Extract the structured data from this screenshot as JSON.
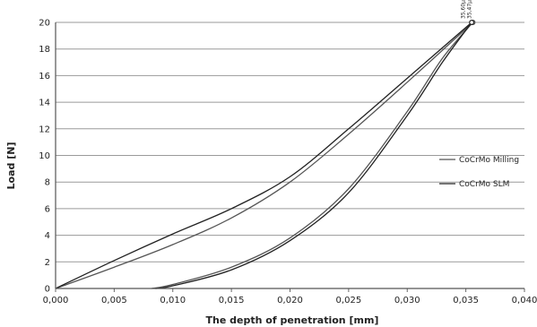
{
  "chart_data": {
    "type": "line",
    "title": "",
    "xlabel": "The depth of penetration [mm]",
    "ylabel": "Load [N]",
    "xlim": [
      0,
      0.04
    ],
    "ylim": [
      0,
      20
    ],
    "x_ticks": [
      "0,000",
      "0,005",
      "0,010",
      "0,015",
      "0,020",
      "0,025",
      "0,030",
      "0,035",
      "0,040"
    ],
    "y_ticks": [
      "0",
      "2",
      "4",
      "6",
      "8",
      "10",
      "12",
      "14",
      "16",
      "18",
      "20"
    ],
    "grid": "horizontal",
    "legend_position": "right",
    "annotations": [
      "35,60μm",
      "35,47μm"
    ],
    "series": [
      {
        "name": "CoCrMo Milling",
        "color": "#555555",
        "loading": [
          [
            0,
            0
          ],
          [
            0.005,
            1.6
          ],
          [
            0.01,
            3.3
          ],
          [
            0.015,
            5.3
          ],
          [
            0.02,
            8.0
          ],
          [
            0.025,
            11.6
          ],
          [
            0.03,
            15.5
          ],
          [
            0.0356,
            20
          ]
        ],
        "unloading": [
          [
            0.0356,
            20
          ],
          [
            0.033,
            17.3
          ],
          [
            0.03,
            13.3
          ],
          [
            0.025,
            7.5
          ],
          [
            0.02,
            3.8
          ],
          [
            0.015,
            1.6
          ],
          [
            0.01,
            0.3
          ],
          [
            0.0082,
            0
          ]
        ]
      },
      {
        "name": "CoCrMo SLM",
        "color": "#222222",
        "loading": [
          [
            0,
            0
          ],
          [
            0.005,
            2.1
          ],
          [
            0.01,
            4.1
          ],
          [
            0.015,
            6.0
          ],
          [
            0.02,
            8.4
          ],
          [
            0.025,
            12.0
          ],
          [
            0.03,
            15.8
          ],
          [
            0.0355,
            20
          ]
        ],
        "unloading": [
          [
            0.0355,
            20
          ],
          [
            0.033,
            17.0
          ],
          [
            0.03,
            13.0
          ],
          [
            0.025,
            7.2
          ],
          [
            0.02,
            3.6
          ],
          [
            0.015,
            1.4
          ],
          [
            0.01,
            0.2
          ],
          [
            0.0085,
            0
          ]
        ]
      }
    ]
  }
}
